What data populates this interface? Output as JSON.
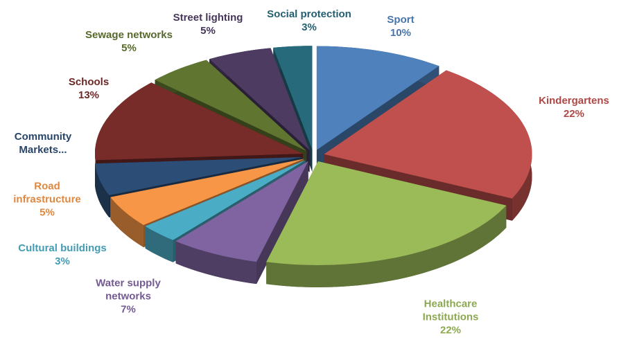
{
  "chart_data": {
    "type": "pie3d",
    "categories": [
      "Sport",
      "Kindergartens",
      "Healthcare Institutions",
      "Water supply networks",
      "Cultural buildings",
      "Road infrastructure",
      "Community Markets...",
      "Schools",
      "Sewage networks",
      "Street lighting",
      "Social protection"
    ],
    "values": [
      10,
      22,
      22,
      7,
      3,
      5,
      5,
      13,
      5,
      5,
      3
    ],
    "value_labels": [
      "10%",
      "22%",
      "22%",
      "7%",
      "3%",
      "5%",
      null,
      "13%",
      "5%",
      "5%",
      "3%"
    ],
    "colors": [
      "#4f81bd",
      "#c0504d",
      "#9bbb59",
      "#8064a2",
      "#4bacc6",
      "#f79646",
      "#2c4d75",
      "#772c2a",
      "#5f7530",
      "#4d3b62",
      "#276a7c"
    ]
  }
}
